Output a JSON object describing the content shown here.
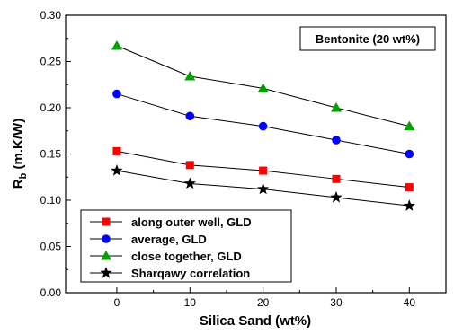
{
  "chart_data": {
    "type": "line",
    "title": "",
    "annotation": "Bentonite (20 wt%)",
    "xlabel": "Silica Sand (wt%)",
    "ylabel_main": "R",
    "ylabel_sub": "b",
    "ylabel_unit": " (m.K/W)",
    "x": [
      0,
      10,
      20,
      30,
      40
    ],
    "xlim": [
      -7,
      45
    ],
    "ylim": [
      0,
      0.3
    ],
    "x_ticks": [
      "0",
      "10",
      "20",
      "30",
      "40"
    ],
    "y_ticks": [
      "0.00",
      "0.05",
      "0.10",
      "0.15",
      "0.20",
      "0.25",
      "0.30"
    ],
    "grid": false,
    "legend_position": "bottom-left",
    "series": [
      {
        "name": "along outer well, GLD",
        "marker": "square",
        "color": "#ff0000",
        "values": [
          0.153,
          0.138,
          0.132,
          0.123,
          0.114
        ]
      },
      {
        "name": "average, GLD",
        "marker": "circle",
        "color": "#0000ff",
        "values": [
          0.215,
          0.191,
          0.18,
          0.165,
          0.15
        ]
      },
      {
        "name": "close together, GLD",
        "marker": "triangle",
        "color": "#00a000",
        "values": [
          0.267,
          0.234,
          0.221,
          0.2,
          0.18
        ]
      },
      {
        "name": "Sharqawy correlation",
        "marker": "star",
        "color": "#000000",
        "values": [
          0.132,
          0.118,
          0.112,
          0.103,
          0.094
        ]
      }
    ]
  }
}
